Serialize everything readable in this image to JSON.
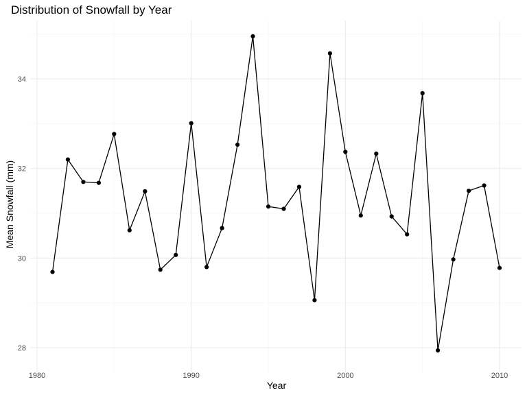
{
  "chart_data": {
    "type": "line",
    "title": "Distribution of Snowfall by Year",
    "xlabel": "Year",
    "ylabel": "Mean Snowfall (mm)",
    "xlim": [
      1980,
      2010
    ],
    "ylim": [
      28,
      34
    ],
    "x_ticks": [
      1980,
      1990,
      2000,
      2010
    ],
    "y_ticks": [
      28,
      30,
      32,
      34
    ],
    "grid": true,
    "legend": "none",
    "line_color": "#000000",
    "x": [
      1981,
      1982,
      1983,
      1984,
      1985,
      1986,
      1987,
      1988,
      1989,
      1990,
      1991,
      1992,
      1993,
      1994,
      1995,
      1996,
      1997,
      1998,
      1999,
      2000,
      2001,
      2002,
      2003,
      2004,
      2005,
      2006,
      2007,
      2008,
      2009,
      2010
    ],
    "y": [
      29.69,
      32.2,
      31.7,
      31.68,
      32.77,
      30.62,
      31.49,
      29.74,
      30.07,
      33.01,
      29.8,
      30.67,
      32.53,
      34.95,
      31.15,
      31.1,
      31.59,
      29.06,
      34.57,
      32.37,
      30.95,
      32.33,
      30.93,
      30.53,
      33.68,
      27.94,
      29.97,
      31.5,
      31.62,
      29.78
    ]
  }
}
